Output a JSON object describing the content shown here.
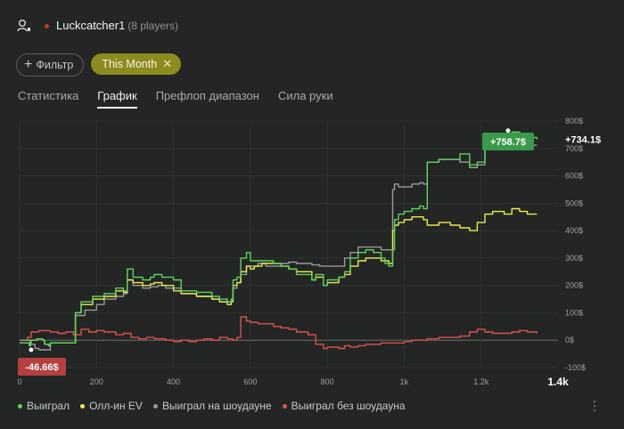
{
  "header": {
    "username": "Luckcatcher1",
    "players": "(8 players)"
  },
  "filters": {
    "add_label": "Фильтр",
    "active_label": "This Month"
  },
  "tabs": [
    {
      "label": "Статистика",
      "active": false
    },
    {
      "label": "График",
      "active": true
    },
    {
      "label": "Префлоп диапазон",
      "active": false
    },
    {
      "label": "Сила руки",
      "active": false
    }
  ],
  "chart_data": {
    "type": "line",
    "x_ticks": [
      "0",
      "200",
      "400",
      "600",
      "800",
      "1k",
      "1.2k",
      "1.4k"
    ],
    "x_tick_values": [
      0,
      200,
      400,
      600,
      800,
      1000,
      1200,
      1400
    ],
    "y_ticks": [
      "800$",
      "700$",
      "600$",
      "500$",
      "400$",
      "300$",
      "200$",
      "100$",
      "0$",
      "-100$"
    ],
    "y_tick_values": [
      800,
      700,
      600,
      500,
      400,
      300,
      200,
      100,
      0,
      -100
    ],
    "xlim": [
      0,
      1400
    ],
    "ylim": [
      -100,
      800
    ],
    "y_unit": "$",
    "callouts": {
      "min_label": "-46.66$",
      "max_label": "+758.7$",
      "end_label": "+734.1$"
    },
    "series": [
      {
        "name": "Выиграл",
        "color": "#5ed25e",
        "points": [
          [
            0,
            -10
          ],
          [
            25,
            -20
          ],
          [
            28,
            0
          ],
          [
            45,
            5
          ],
          [
            60,
            0
          ],
          [
            65,
            -15
          ],
          [
            75,
            -20
          ],
          [
            80,
            -10
          ],
          [
            140,
            -10
          ],
          [
            145,
            100
          ],
          [
            160,
            140
          ],
          [
            190,
            160
          ],
          [
            220,
            170
          ],
          [
            250,
            190
          ],
          [
            270,
            180
          ],
          [
            280,
            260
          ],
          [
            295,
            230
          ],
          [
            320,
            220
          ],
          [
            340,
            230
          ],
          [
            350,
            240
          ],
          [
            370,
            230
          ],
          [
            400,
            220
          ],
          [
            420,
            180
          ],
          [
            460,
            175
          ],
          [
            500,
            160
          ],
          [
            520,
            150
          ],
          [
            540,
            140
          ],
          [
            550,
            150
          ],
          [
            555,
            220
          ],
          [
            565,
            230
          ],
          [
            575,
            300
          ],
          [
            590,
            320
          ],
          [
            600,
            290
          ],
          [
            610,
            290
          ],
          [
            630,
            290
          ],
          [
            660,
            280
          ],
          [
            680,
            270
          ],
          [
            700,
            260
          ],
          [
            720,
            240
          ],
          [
            760,
            220
          ],
          [
            770,
            240
          ],
          [
            790,
            200
          ],
          [
            800,
            220
          ],
          [
            830,
            230
          ],
          [
            845,
            250
          ],
          [
            860,
            300
          ],
          [
            880,
            320
          ],
          [
            900,
            330
          ],
          [
            920,
            320
          ],
          [
            940,
            300
          ],
          [
            950,
            280
          ],
          [
            960,
            270
          ],
          [
            970,
            330
          ],
          [
            975,
            440
          ],
          [
            985,
            460
          ],
          [
            1000,
            470
          ],
          [
            1020,
            480
          ],
          [
            1040,
            490
          ],
          [
            1050,
            480
          ],
          [
            1060,
            650
          ],
          [
            1090,
            660
          ],
          [
            1120,
            660
          ],
          [
            1145,
            680
          ],
          [
            1170,
            630
          ],
          [
            1190,
            650
          ],
          [
            1210,
            720
          ],
          [
            1230,
            740
          ],
          [
            1260,
            750
          ],
          [
            1280,
            760
          ],
          [
            1300,
            745
          ],
          [
            1320,
            740
          ],
          [
            1345,
            733
          ]
        ]
      },
      {
        "name": "Олл-ин EV",
        "color": "#ecec4a",
        "points": [
          [
            0,
            -10
          ],
          [
            25,
            -20
          ],
          [
            28,
            0
          ],
          [
            45,
            5
          ],
          [
            60,
            0
          ],
          [
            65,
            -15
          ],
          [
            75,
            -20
          ],
          [
            80,
            -10
          ],
          [
            140,
            -10
          ],
          [
            145,
            100
          ],
          [
            160,
            130
          ],
          [
            190,
            150
          ],
          [
            220,
            160
          ],
          [
            250,
            180
          ],
          [
            270,
            175
          ],
          [
            280,
            220
          ],
          [
            295,
            210
          ],
          [
            320,
            200
          ],
          [
            340,
            205
          ],
          [
            350,
            210
          ],
          [
            370,
            200
          ],
          [
            400,
            180
          ],
          [
            420,
            170
          ],
          [
            460,
            160
          ],
          [
            500,
            150
          ],
          [
            520,
            140
          ],
          [
            540,
            130
          ],
          [
            550,
            140
          ],
          [
            555,
            200
          ],
          [
            565,
            210
          ],
          [
            575,
            250
          ],
          [
            590,
            270
          ],
          [
            600,
            260
          ],
          [
            610,
            270
          ],
          [
            630,
            280
          ],
          [
            660,
            280
          ],
          [
            680,
            270
          ],
          [
            700,
            260
          ],
          [
            720,
            250
          ],
          [
            760,
            220
          ],
          [
            770,
            230
          ],
          [
            790,
            200
          ],
          [
            800,
            210
          ],
          [
            830,
            230
          ],
          [
            845,
            240
          ],
          [
            860,
            270
          ],
          [
            880,
            290
          ],
          [
            900,
            300
          ],
          [
            920,
            300
          ],
          [
            940,
            290
          ],
          [
            950,
            290
          ],
          [
            960,
            280
          ],
          [
            970,
            400
          ],
          [
            975,
            420
          ],
          [
            985,
            430
          ],
          [
            1000,
            440
          ],
          [
            1020,
            450
          ],
          [
            1040,
            450
          ],
          [
            1050,
            440
          ],
          [
            1060,
            420
          ],
          [
            1090,
            430
          ],
          [
            1120,
            420
          ],
          [
            1145,
            410
          ],
          [
            1170,
            400
          ],
          [
            1190,
            430
          ],
          [
            1210,
            460
          ],
          [
            1230,
            470
          ],
          [
            1260,
            460
          ],
          [
            1280,
            480
          ],
          [
            1300,
            470
          ],
          [
            1320,
            460
          ],
          [
            1345,
            460
          ]
        ]
      },
      {
        "name": "Выиграл на шоудауне",
        "color": "#9a9a9a",
        "points": [
          [
            0,
            0
          ],
          [
            30,
            -15
          ],
          [
            40,
            -30
          ],
          [
            50,
            -35
          ],
          [
            80,
            -10
          ],
          [
            140,
            -10
          ],
          [
            145,
            90
          ],
          [
            170,
            110
          ],
          [
            200,
            130
          ],
          [
            220,
            150
          ],
          [
            250,
            160
          ],
          [
            270,
            170
          ],
          [
            280,
            220
          ],
          [
            295,
            200
          ],
          [
            320,
            190
          ],
          [
            340,
            195
          ],
          [
            360,
            200
          ],
          [
            380,
            190
          ],
          [
            420,
            170
          ],
          [
            460,
            160
          ],
          [
            500,
            150
          ],
          [
            520,
            140
          ],
          [
            540,
            140
          ],
          [
            555,
            190
          ],
          [
            565,
            210
          ],
          [
            575,
            240
          ],
          [
            590,
            270
          ],
          [
            600,
            270
          ],
          [
            620,
            280
          ],
          [
            640,
            270
          ],
          [
            660,
            270
          ],
          [
            680,
            280
          ],
          [
            700,
            285
          ],
          [
            720,
            280
          ],
          [
            760,
            275
          ],
          [
            780,
            270
          ],
          [
            800,
            270
          ],
          [
            820,
            270
          ],
          [
            845,
            300
          ],
          [
            860,
            320
          ],
          [
            880,
            340
          ],
          [
            900,
            340
          ],
          [
            920,
            340
          ],
          [
            940,
            330
          ],
          [
            960,
            330
          ],
          [
            970,
            550
          ],
          [
            975,
            570
          ],
          [
            985,
            560
          ],
          [
            1000,
            560
          ],
          [
            1020,
            570
          ],
          [
            1040,
            575
          ],
          [
            1050,
            570
          ],
          [
            1060,
            650
          ],
          [
            1090,
            660
          ],
          [
            1120,
            660
          ],
          [
            1145,
            650
          ],
          [
            1170,
            640
          ],
          [
            1190,
            640
          ],
          [
            1210,
            700
          ],
          [
            1230,
            710
          ],
          [
            1260,
            720
          ],
          [
            1280,
            720
          ],
          [
            1300,
            715
          ],
          [
            1320,
            712
          ],
          [
            1345,
            712
          ]
        ]
      },
      {
        "name": "Выиграл без шоудауна",
        "color": "#e05050",
        "points": [
          [
            0,
            0
          ],
          [
            20,
            10
          ],
          [
            30,
            30
          ],
          [
            50,
            35
          ],
          [
            80,
            30
          ],
          [
            100,
            25
          ],
          [
            120,
            30
          ],
          [
            140,
            20
          ],
          [
            160,
            40
          ],
          [
            180,
            30
          ],
          [
            200,
            35
          ],
          [
            220,
            30
          ],
          [
            250,
            20
          ],
          [
            270,
            25
          ],
          [
            290,
            10
          ],
          [
            310,
            5
          ],
          [
            330,
            10
          ],
          [
            350,
            5
          ],
          [
            380,
            0
          ],
          [
            400,
            -5
          ],
          [
            420,
            0
          ],
          [
            440,
            -5
          ],
          [
            460,
            0
          ],
          [
            480,
            5
          ],
          [
            500,
            0
          ],
          [
            520,
            10
          ],
          [
            540,
            5
          ],
          [
            555,
            0
          ],
          [
            565,
            10
          ],
          [
            575,
            85
          ],
          [
            590,
            70
          ],
          [
            600,
            65
          ],
          [
            620,
            60
          ],
          [
            640,
            60
          ],
          [
            660,
            50
          ],
          [
            680,
            45
          ],
          [
            700,
            40
          ],
          [
            720,
            30
          ],
          [
            750,
            20
          ],
          [
            770,
            -15
          ],
          [
            790,
            -30
          ],
          [
            800,
            -25
          ],
          [
            830,
            -30
          ],
          [
            845,
            -20
          ],
          [
            860,
            -25
          ],
          [
            880,
            -20
          ],
          [
            900,
            -15
          ],
          [
            920,
            -15
          ],
          [
            940,
            -10
          ],
          [
            960,
            -10
          ],
          [
            980,
            -10
          ],
          [
            1000,
            -5
          ],
          [
            1020,
            0
          ],
          [
            1040,
            0
          ],
          [
            1060,
            5
          ],
          [
            1090,
            10
          ],
          [
            1120,
            10
          ],
          [
            1145,
            15
          ],
          [
            1170,
            30
          ],
          [
            1190,
            40
          ],
          [
            1210,
            30
          ],
          [
            1230,
            25
          ],
          [
            1260,
            25
          ],
          [
            1280,
            30
          ],
          [
            1300,
            35
          ],
          [
            1320,
            30
          ],
          [
            1345,
            25
          ]
        ]
      }
    ]
  },
  "colors": {
    "background": "#232624",
    "accent": "#8b8c1e",
    "positive": "#3b9a49",
    "negative": "#b54040"
  }
}
